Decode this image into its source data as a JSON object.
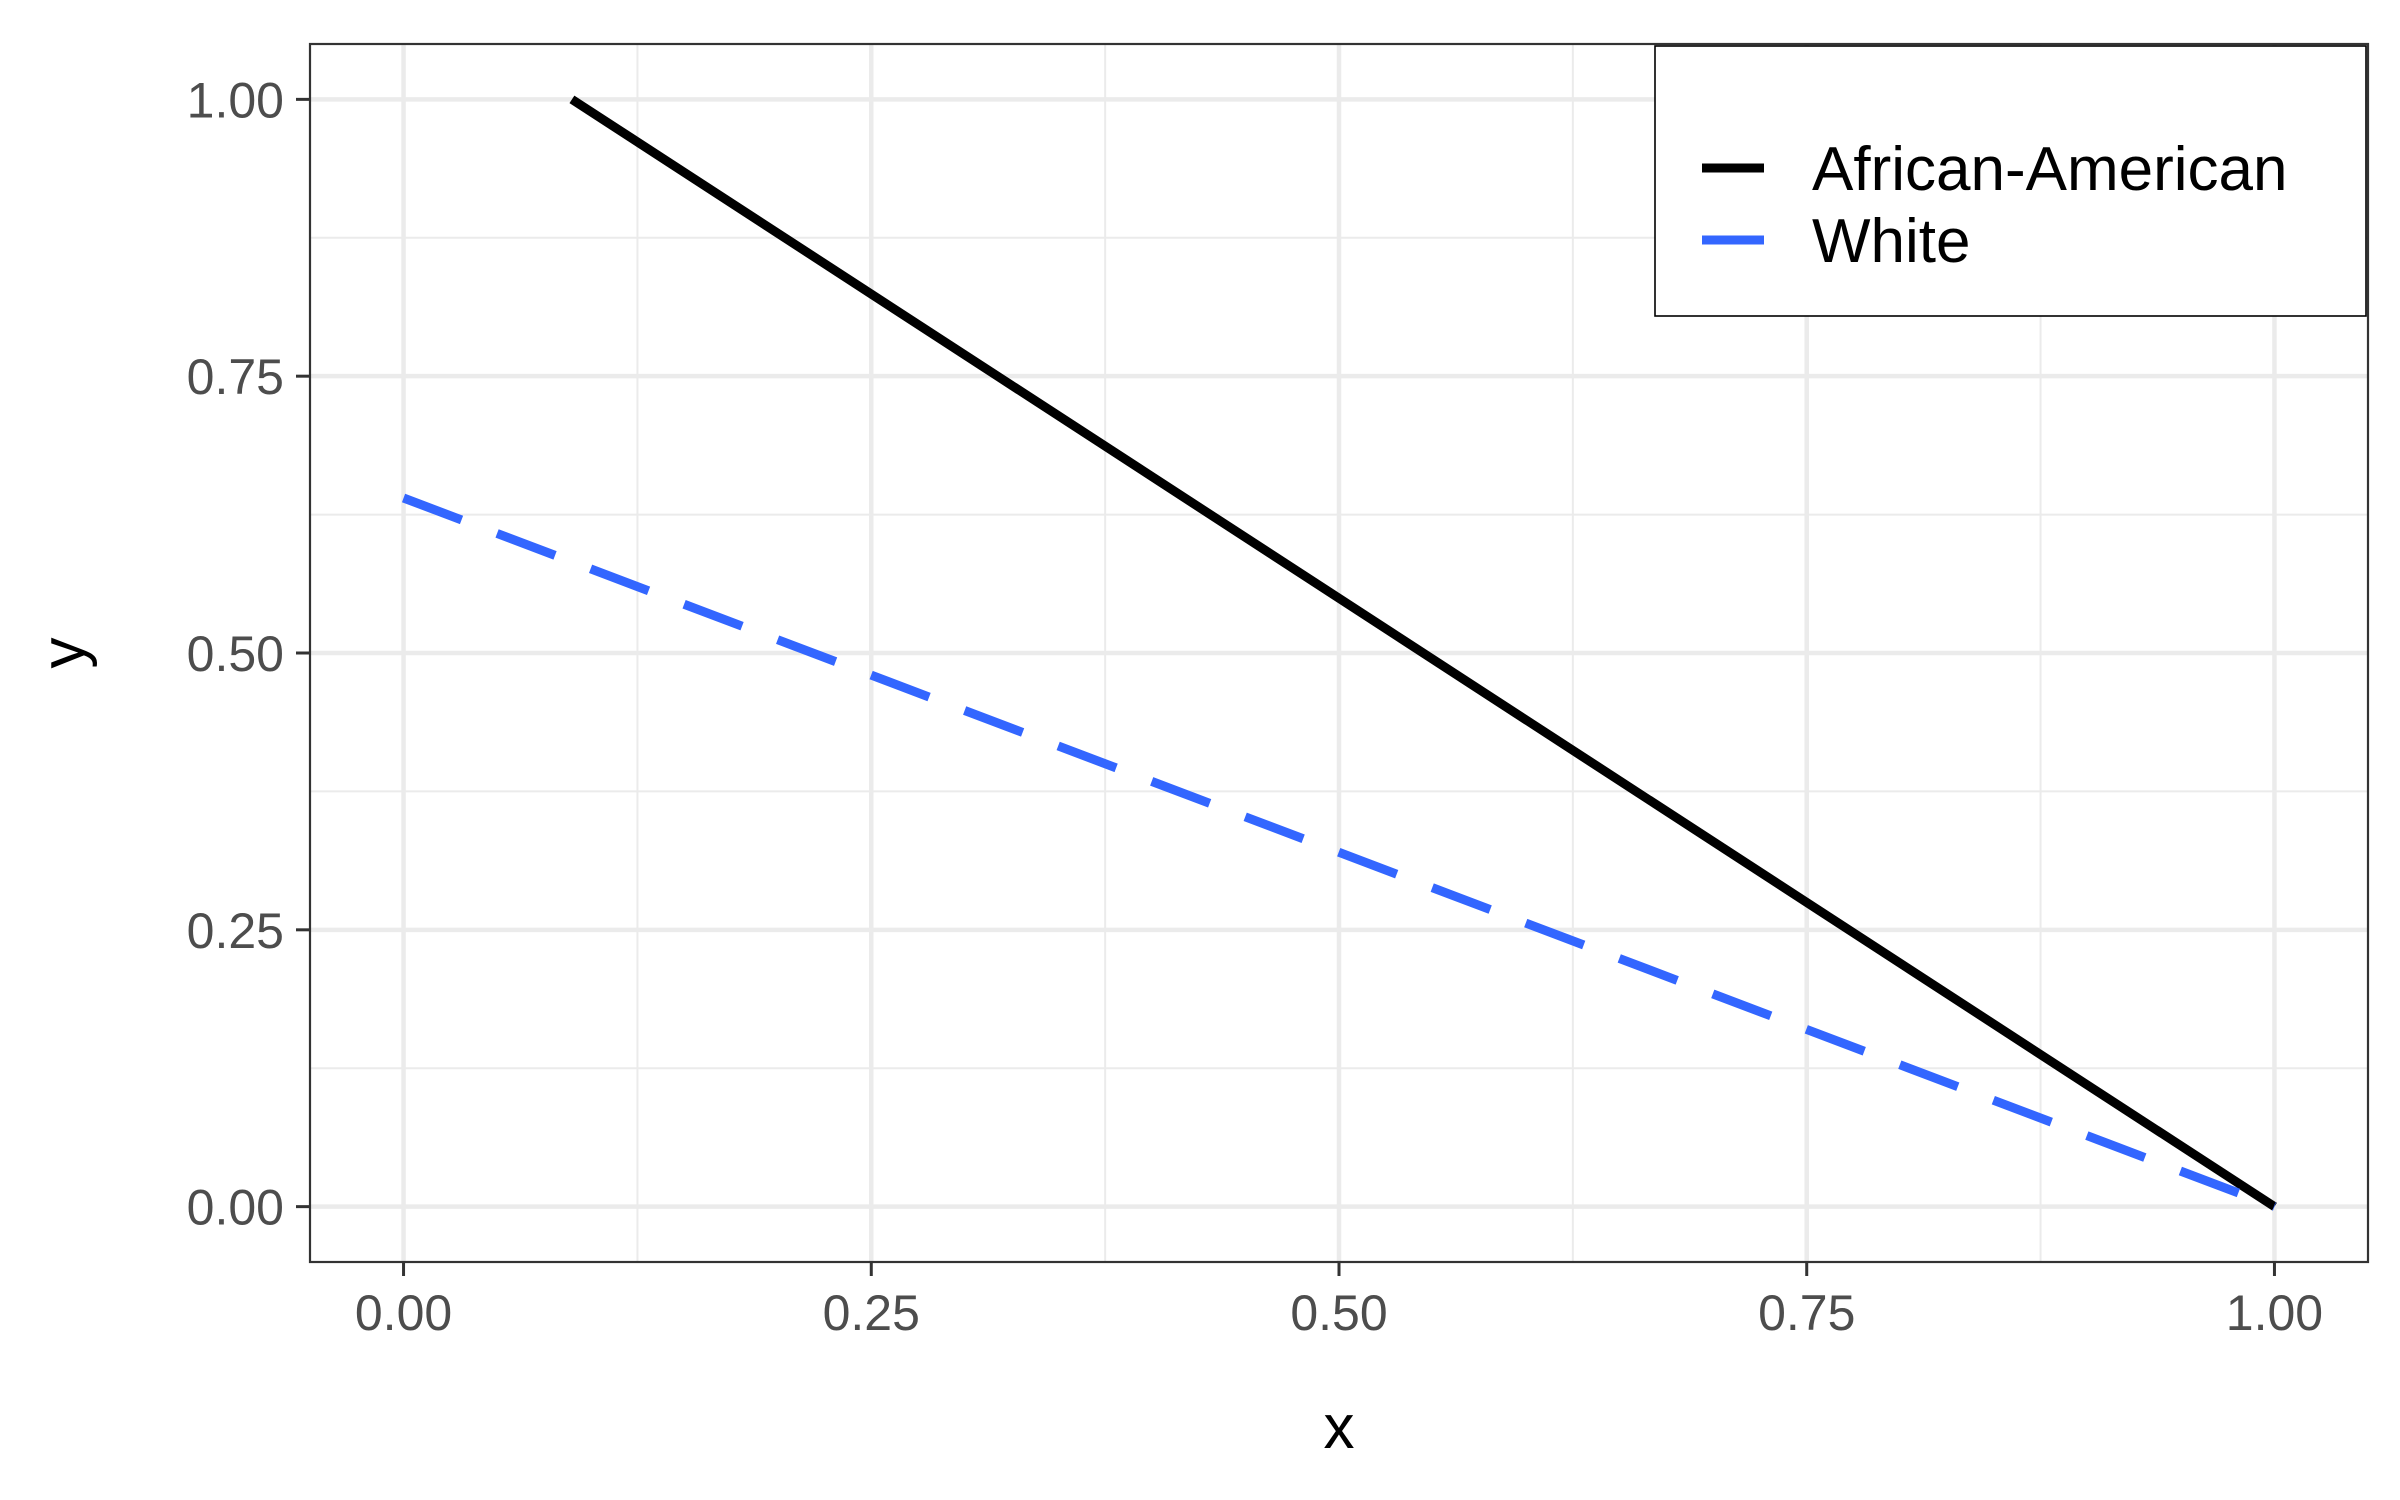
{
  "chart_data": {
    "type": "line",
    "title": "",
    "xlabel": "x",
    "ylabel": "y",
    "xlim": [
      -0.05,
      1.05
    ],
    "ylim": [
      -0.05,
      1.05
    ],
    "xticks": [
      0,
      0.25,
      0.5,
      0.75,
      1
    ],
    "yticks": [
      0,
      0.25,
      0.5,
      0.75,
      1
    ],
    "xtick_labels": [
      "0.00",
      "0.25",
      "0.50",
      "0.75",
      "1.00"
    ],
    "ytick_labels": [
      "0.00",
      "0.25",
      "0.50",
      "0.75",
      "1.00"
    ],
    "grid": true,
    "legend_position": "top-right",
    "series": [
      {
        "name": "African-American",
        "color": "#000000",
        "dash": "solid",
        "x": [
          0.09,
          1.0
        ],
        "y": [
          1.0,
          0.0
        ]
      },
      {
        "name": "White",
        "color": "#3366FF",
        "dash": "dashed",
        "x": [
          0.0,
          1.0
        ],
        "y": [
          0.64,
          0.0
        ]
      }
    ]
  }
}
